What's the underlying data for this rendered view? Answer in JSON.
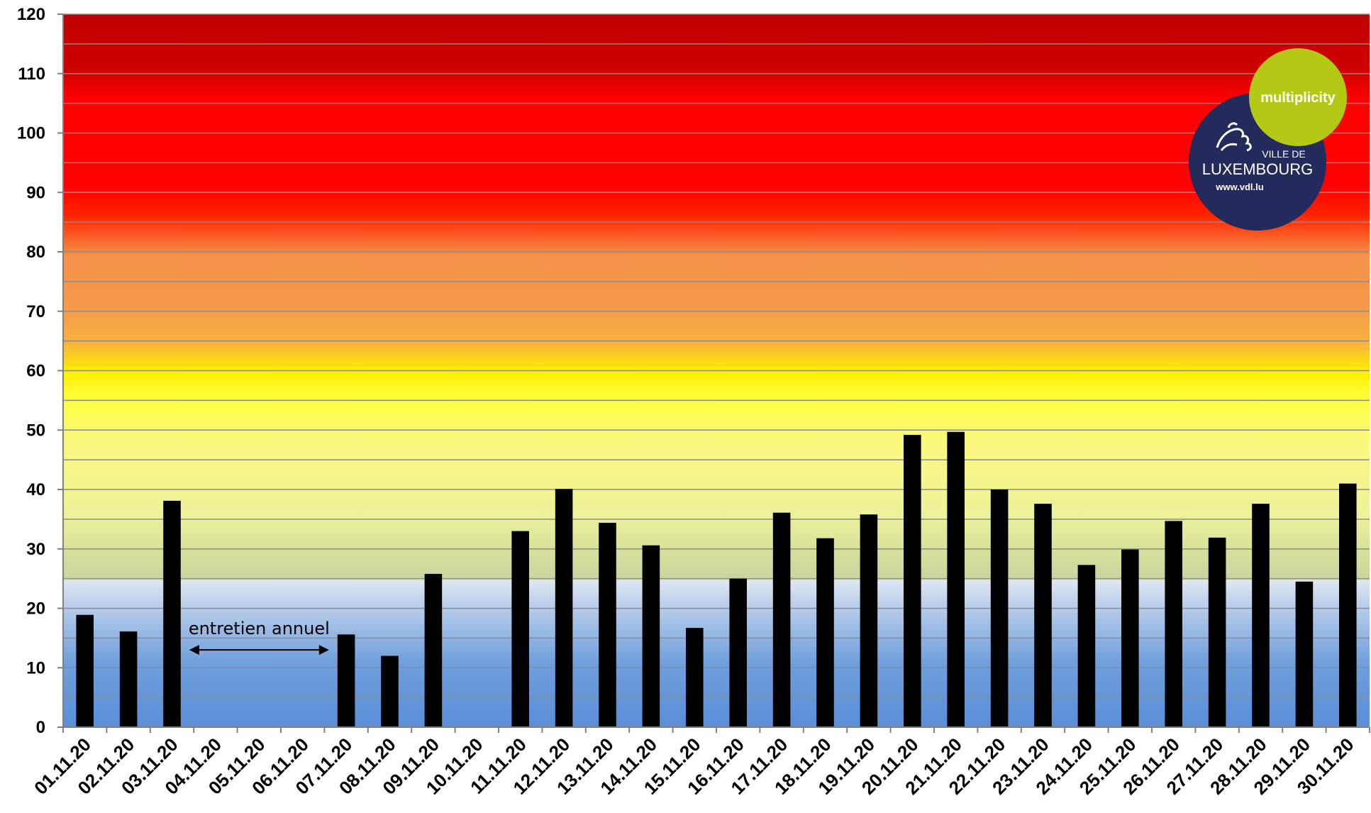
{
  "chart_data": {
    "type": "bar",
    "title": "",
    "xlabel": "",
    "ylabel": "",
    "ylim": [
      0,
      120
    ],
    "yticks": [
      0,
      10,
      20,
      30,
      40,
      50,
      60,
      70,
      80,
      90,
      100,
      110,
      120
    ],
    "grid": true,
    "categories": [
      "01.11.20",
      "02.11.20",
      "03.11.20",
      "04.11.20",
      "05.11.20",
      "06.11.20",
      "07.11.20",
      "08.11.20",
      "09.11.20",
      "10.11.20",
      "11.11.20",
      "12.11.20",
      "13.11.20",
      "14.11.20",
      "15.11.20",
      "16.11.20",
      "17.11.20",
      "18.11.20",
      "19.11.20",
      "20.11.20",
      "21.11.20",
      "22.11.20",
      "23.11.20",
      "24.11.20",
      "25.11.20",
      "26.11.20",
      "27.11.20",
      "28.11.20",
      "29.11.20",
      "30.11.20"
    ],
    "values": [
      18.9,
      16.1,
      38.1,
      null,
      null,
      null,
      15.6,
      12.0,
      25.8,
      null,
      33.0,
      40.1,
      34.4,
      30.6,
      16.7,
      25.0,
      36.1,
      31.8,
      35.8,
      49.2,
      49.7,
      40.0,
      37.6,
      27.3,
      29.9,
      34.7,
      31.9,
      37.6,
      24.5,
      41.0
    ],
    "bar_color": "#000000",
    "bands": [
      {
        "from": 0,
        "to": 25,
        "color": "#5b8fd6"
      },
      {
        "from": 25,
        "to": 50,
        "color": "#f2f07a"
      },
      {
        "from": 50,
        "to": 60,
        "color": "#ffff00"
      },
      {
        "from": 60,
        "to": 80,
        "color": "#f59a4a"
      },
      {
        "from": 80,
        "to": 110,
        "color": "#ff0000"
      },
      {
        "from": 110,
        "to": 120,
        "color": "#c00000"
      }
    ],
    "annotations": [
      {
        "text": "entretien annuel",
        "from_category": "03.11.20",
        "to_category": "07.11.20",
        "y": 13
      }
    ]
  },
  "logos": {
    "multiplicity": "multiplicity",
    "vdl_line1": "VILLE DE",
    "vdl_line2": "LUXEMBOURG",
    "vdl_url": "www.vdl.lu"
  }
}
